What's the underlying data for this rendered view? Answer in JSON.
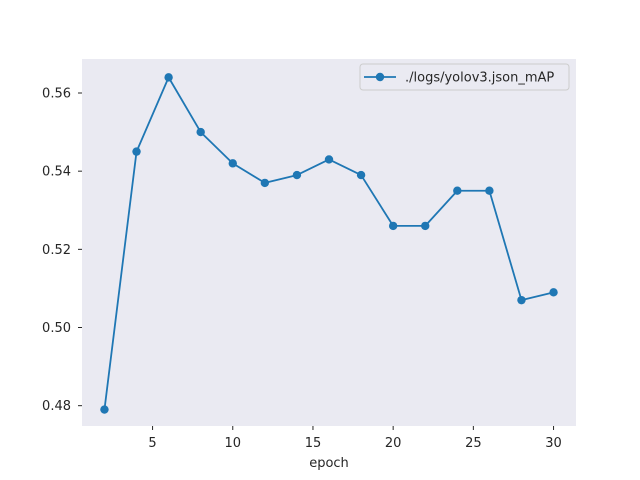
{
  "chart_data": {
    "type": "line",
    "title": "",
    "xlabel": "epoch",
    "ylabel": "",
    "xlim": [
      0.6,
      31.4
    ],
    "ylim": [
      0.4748,
      0.5687
    ],
    "xticks": [
      5,
      10,
      15,
      20,
      25,
      30
    ],
    "yticks": [
      0.48,
      0.5,
      0.52,
      0.54,
      0.56
    ],
    "ytick_labels": [
      "0.48",
      "0.50",
      "0.52",
      "0.54",
      "0.56"
    ],
    "grid": false,
    "legend_position": "top-right",
    "series": [
      {
        "name": "./logs/yolov3.json_mAP",
        "color": "#1f77b4",
        "marker": "circle",
        "x": [
          2,
          4,
          6,
          8,
          10,
          12,
          14,
          16,
          18,
          20,
          22,
          24,
          26,
          28,
          30
        ],
        "y": [
          0.479,
          0.545,
          0.564,
          0.55,
          0.542,
          0.537,
          0.539,
          0.543,
          0.539,
          0.526,
          0.526,
          0.535,
          0.535,
          0.507,
          0.509
        ]
      }
    ]
  },
  "colors": {
    "plot_background": "#eaeaf2",
    "page_background": "#ffffff",
    "line": "#1f77b4"
  }
}
